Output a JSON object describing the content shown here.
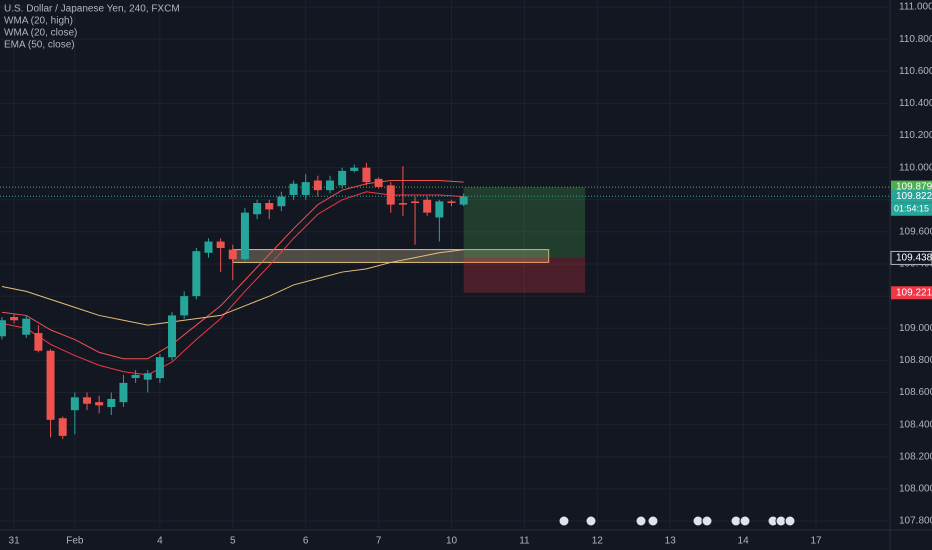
{
  "chart_data": {
    "type": "candlestick",
    "title": "U.S. Dollar / Japanese Yen, 240, FXCM",
    "up_color": "#26a69a",
    "down_color": "#ef5350",
    "x": [
      0,
      1,
      2,
      3,
      4,
      5,
      6,
      7,
      8,
      9,
      10,
      11,
      12,
      13,
      14,
      15,
      16,
      17,
      18,
      19,
      20,
      21,
      22,
      23,
      24,
      25,
      26,
      27,
      28,
      29,
      30,
      31,
      32,
      33,
      34,
      35,
      36,
      37,
      38
    ],
    "open": [
      108.95,
      109.07,
      108.96,
      108.97,
      108.86,
      108.44,
      108.49,
      108.57,
      108.54,
      108.51,
      108.54,
      108.69,
      108.68,
      108.69,
      108.82,
      109.08,
      109.2,
      109.47,
      109.54,
      109.49,
      109.43,
      109.71,
      109.78,
      109.76,
      109.83,
      109.83,
      109.92,
      109.86,
      109.89,
      109.98,
      110.0,
      109.93,
      109.89,
      109.78,
      109.79,
      109.8,
      109.69,
      109.79,
      109.77
    ],
    "high": [
      109.07,
      109.09,
      109.08,
      109.02,
      108.87,
      108.45,
      108.6,
      108.6,
      108.58,
      108.6,
      108.71,
      108.74,
      108.74,
      108.84,
      109.1,
      109.23,
      109.5,
      109.56,
      109.56,
      109.52,
      109.75,
      109.8,
      109.8,
      109.85,
      109.92,
      109.96,
      109.95,
      109.95,
      110.0,
      110.02,
      110.03,
      109.94,
      109.91,
      110.01,
      109.82,
      109.82,
      109.8,
      109.8,
      109.84
    ],
    "low": [
      108.93,
      109.03,
      108.94,
      108.85,
      108.32,
      108.31,
      108.34,
      108.49,
      108.47,
      108.46,
      108.51,
      108.66,
      108.6,
      108.66,
      108.8,
      109.06,
      109.18,
      109.44,
      109.35,
      109.3,
      109.42,
      109.68,
      109.68,
      109.73,
      109.8,
      109.8,
      109.82,
      109.84,
      109.87,
      109.97,
      109.89,
      109.87,
      109.72,
      109.7,
      109.52,
      109.7,
      109.54,
      109.76,
      109.76
    ],
    "close": [
      109.05,
      109.05,
      109.06,
      108.86,
      108.43,
      108.33,
      108.57,
      108.53,
      108.52,
      108.56,
      108.66,
      108.71,
      108.72,
      108.82,
      109.08,
      109.2,
      109.48,
      109.54,
      109.5,
      109.43,
      109.72,
      109.78,
      109.74,
      109.82,
      109.9,
      109.91,
      109.86,
      109.92,
      109.98,
      110.0,
      109.91,
      109.88,
      109.77,
      109.77,
      109.78,
      109.72,
      109.79,
      109.78,
      109.82
    ],
    "lines": [
      {
        "name": "WMA (20, high)",
        "color": "#ef5350",
        "x": [
          0,
          2,
          4,
          6,
          8,
          10,
          12,
          14,
          16,
          18,
          20,
          22,
          24,
          26,
          28,
          30,
          32,
          34,
          36,
          38
        ],
        "values": [
          109.1,
          109.08,
          108.99,
          108.93,
          108.85,
          108.81,
          108.81,
          108.9,
          109.02,
          109.14,
          109.3,
          109.46,
          109.62,
          109.77,
          109.86,
          109.9,
          109.92,
          109.92,
          109.92,
          109.91
        ]
      },
      {
        "name": "WMA (20, close)",
        "color": "#f23645",
        "x": [
          0,
          2,
          4,
          6,
          8,
          10,
          12,
          14,
          16,
          18,
          20,
          22,
          24,
          26,
          28,
          30,
          32,
          34,
          36,
          38
        ],
        "values": [
          109.03,
          109.0,
          108.9,
          108.83,
          108.77,
          108.73,
          108.71,
          108.79,
          108.93,
          109.06,
          109.23,
          109.39,
          109.56,
          109.71,
          109.8,
          109.85,
          109.83,
          109.83,
          109.83,
          109.82
        ]
      },
      {
        "name": "EMA (50, close)",
        "color": "#e3c07a",
        "x": [
          0,
          2,
          4,
          6,
          8,
          10,
          12,
          14,
          16,
          18,
          20,
          22,
          24,
          26,
          28,
          30,
          32,
          34,
          36,
          38
        ],
        "values": [
          109.26,
          109.23,
          109.18,
          109.13,
          109.08,
          109.05,
          109.02,
          109.04,
          109.06,
          109.08,
          109.14,
          109.2,
          109.27,
          109.31,
          109.35,
          109.37,
          109.41,
          109.44,
          109.47,
          109.49
        ]
      }
    ],
    "xlim": [
      -0.16,
      73.09
    ],
    "xticks": [
      {
        "value": 1,
        "label": "31"
      },
      {
        "value": 6,
        "label": "Feb"
      },
      {
        "value": 13,
        "label": "4"
      },
      {
        "value": 19,
        "label": "5"
      },
      {
        "value": 25,
        "label": "6"
      },
      {
        "value": 31,
        "label": "7"
      },
      {
        "value": 37,
        "label": "10"
      },
      {
        "value": 43,
        "label": "11"
      },
      {
        "value": 49,
        "label": "12"
      },
      {
        "value": 55,
        "label": "13"
      },
      {
        "value": 61,
        "label": "14"
      },
      {
        "value": 67,
        "label": "17"
      }
    ],
    "ylim": [
      107.744,
      111.044
    ],
    "yticks": [
      {
        "value": 107.8,
        "label": "107.800"
      },
      {
        "value": 108,
        "label": "108.000"
      },
      {
        "value": 108.2,
        "label": "108.200"
      },
      {
        "value": 108.4,
        "label": "108.400"
      },
      {
        "value": 108.6,
        "label": "108.600"
      },
      {
        "value": 108.8,
        "label": "108.800"
      },
      {
        "value": 109,
        "label": "109.000"
      },
      {
        "value": 109.2,
        "label": "109.200"
      },
      {
        "value": 109.4,
        "label": "109.400"
      },
      {
        "value": 109.6,
        "label": "109.600"
      },
      {
        "value": 109.8,
        "label": "109.800"
      },
      {
        "value": 110,
        "label": "110.000"
      },
      {
        "value": 110.2,
        "label": "110.200"
      },
      {
        "value": 110.4,
        "label": "110.400"
      },
      {
        "value": 110.6,
        "label": "110.600"
      },
      {
        "value": 110.8,
        "label": "110.800"
      },
      {
        "value": 111,
        "label": "111.000"
      }
    ],
    "grid": true,
    "price_labels": [
      {
        "value": 109.879,
        "label": "109.879",
        "color": "#4caf50"
      },
      {
        "value": 109.822,
        "label": "109.822",
        "color": "#26a69a"
      },
      {
        "value": 109.438,
        "label": "109.438",
        "color": "#131722"
      },
      {
        "value": 109.221,
        "label": "109.221",
        "color": "#f23645"
      }
    ],
    "countdown": "01:54:15",
    "position": {
      "x": [
        38,
        48
      ]
    },
    "zone": {
      "x": [
        19,
        45
      ],
      "y": [
        109.41,
        109.49
      ]
    }
  }
}
